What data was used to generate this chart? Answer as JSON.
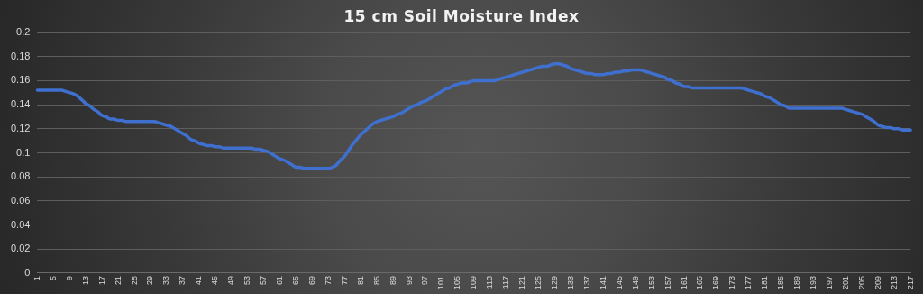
{
  "chart_data": {
    "type": "line",
    "title": "15 cm Soil Moisture Index",
    "categories": [
      "1",
      null,
      null,
      null,
      "5",
      null,
      null,
      null,
      "9",
      null,
      null,
      null,
      "13",
      null,
      null,
      null,
      "17",
      null,
      null,
      null,
      "21",
      null,
      null,
      null,
      "25",
      null,
      null,
      null,
      "29",
      null,
      null,
      null,
      "33",
      null,
      null,
      null,
      "37",
      null,
      null,
      null,
      "41",
      null,
      null,
      null,
      "45",
      null,
      null,
      null,
      "49",
      null,
      null,
      null,
      "53",
      null,
      null,
      null,
      "57",
      null,
      null,
      null,
      "61",
      null,
      null,
      null,
      "65",
      null,
      null,
      null,
      "69",
      null,
      null,
      null,
      "73",
      null,
      null,
      null,
      "77",
      null,
      null,
      null,
      "81",
      null,
      null,
      null,
      "85",
      null,
      null,
      null,
      "89",
      null,
      null,
      null,
      "93",
      null,
      null,
      null,
      "97",
      null,
      null,
      null,
      "101",
      null,
      null,
      null,
      "105",
      null,
      null,
      null,
      "109",
      null,
      null,
      null,
      "113",
      null,
      null,
      null,
      "117",
      null,
      null,
      null,
      "121",
      null,
      null,
      null,
      "125",
      null,
      null,
      null,
      "129",
      null,
      null,
      null,
      "133",
      null,
      null,
      null,
      "137",
      null,
      null,
      null,
      "141",
      null,
      null,
      null,
      "145",
      null,
      null,
      null,
      "149",
      null,
      null,
      null,
      "153",
      null,
      null,
      null,
      "157",
      null,
      null,
      null,
      "161",
      null,
      null,
      null,
      "165",
      null,
      null,
      null,
      "169",
      null,
      null,
      null,
      "173",
      null,
      null,
      null,
      "177",
      null,
      null,
      null,
      "181",
      null,
      null,
      null,
      "185",
      null,
      null,
      null,
      "189",
      null,
      null,
      null,
      "193",
      null,
      null,
      null,
      "197",
      null,
      null,
      null,
      "201",
      null,
      null,
      null,
      "205",
      null,
      null,
      null,
      "209",
      null,
      null,
      null,
      "213",
      null,
      null,
      null,
      "217"
    ],
    "series": [
      {
        "color": "#3f70d0",
        "values": [
          0.152,
          0.152,
          0.152,
          0.152,
          0.152,
          0.152,
          0.152,
          0.151,
          0.15,
          0.149,
          0.147,
          0.144,
          0.141,
          0.139,
          0.136,
          0.134,
          0.131,
          0.13,
          0.128,
          0.128,
          0.127,
          0.127,
          0.126,
          0.126,
          0.126,
          0.126,
          0.126,
          0.126,
          0.126,
          0.126,
          0.125,
          0.124,
          0.123,
          0.122,
          0.12,
          0.118,
          0.116,
          0.114,
          0.111,
          0.11,
          0.108,
          0.107,
          0.106,
          0.106,
          0.105,
          0.105,
          0.104,
          0.104,
          0.104,
          0.104,
          0.104,
          0.104,
          0.104,
          0.104,
          0.103,
          0.103,
          0.102,
          0.101,
          0.099,
          0.097,
          0.095,
          0.094,
          0.092,
          0.09,
          0.088,
          0.088,
          0.087,
          0.087,
          0.087,
          0.087,
          0.087,
          0.087,
          0.087,
          0.088,
          0.09,
          0.094,
          0.097,
          0.102,
          0.107,
          0.111,
          0.115,
          0.118,
          0.121,
          0.124,
          0.126,
          0.127,
          0.128,
          0.129,
          0.13,
          0.132,
          0.133,
          0.135,
          0.137,
          0.139,
          0.14,
          0.142,
          0.143,
          0.145,
          0.147,
          0.149,
          0.151,
          0.153,
          0.154,
          0.156,
          0.157,
          0.158,
          0.158,
          0.159,
          0.16,
          0.16,
          0.16,
          0.16,
          0.16,
          0.16,
          0.161,
          0.162,
          0.163,
          0.164,
          0.165,
          0.166,
          0.167,
          0.168,
          0.169,
          0.17,
          0.171,
          0.172,
          0.172,
          0.173,
          0.174,
          0.174,
          0.173,
          0.172,
          0.17,
          0.169,
          0.168,
          0.167,
          0.166,
          0.166,
          0.165,
          0.165,
          0.165,
          0.166,
          0.166,
          0.167,
          0.167,
          0.168,
          0.168,
          0.169,
          0.169,
          0.169,
          0.168,
          0.167,
          0.166,
          0.165,
          0.164,
          0.163,
          0.161,
          0.16,
          0.158,
          0.157,
          0.155,
          0.155,
          0.154,
          0.154,
          0.154,
          0.154,
          0.154,
          0.154,
          0.154,
          0.154,
          0.154,
          0.154,
          0.154,
          0.154,
          0.154,
          0.153,
          0.152,
          0.151,
          0.15,
          0.149,
          0.147,
          0.146,
          0.144,
          0.142,
          0.14,
          0.139,
          0.137,
          0.137,
          0.137,
          0.137,
          0.137,
          0.137,
          0.137,
          0.137,
          0.137,
          0.137,
          0.137,
          0.137,
          0.137,
          0.137,
          0.136,
          0.135,
          0.134,
          0.133,
          0.132,
          0.13,
          0.128,
          0.126,
          0.123,
          0.122,
          0.121,
          0.121,
          0.12,
          0.12,
          0.119,
          0.119,
          0.119
        ]
      }
    ],
    "ylim": [
      0,
      0.2
    ],
    "yticks": [
      0,
      0.02,
      0.04,
      0.06,
      0.08,
      0.1,
      0.12,
      0.14,
      0.16,
      0.18,
      0.2
    ],
    "grid": "y",
    "legend": false,
    "marker": "none",
    "line_style": "solid"
  }
}
